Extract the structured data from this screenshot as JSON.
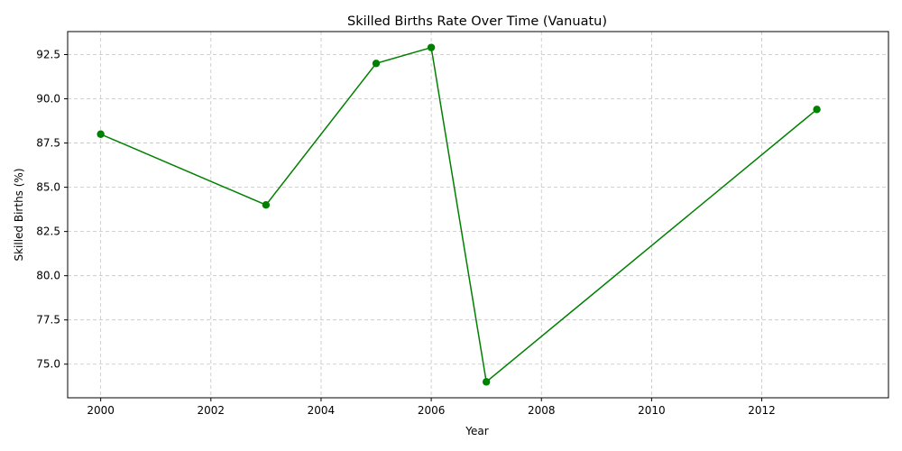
{
  "chart_data": {
    "type": "line",
    "title": "Skilled Births Rate Over Time (Vanuatu)",
    "xlabel": "Year",
    "ylabel": "Skilled Births (%)",
    "xlim": [
      1999.4,
      2014.3
    ],
    "ylim": [
      73.1,
      93.8
    ],
    "x_ticks": [
      2000,
      2002,
      2004,
      2006,
      2008,
      2010,
      2012
    ],
    "y_ticks": [
      75.0,
      77.5,
      80.0,
      82.5,
      85.0,
      87.5,
      90.0,
      92.5
    ],
    "x_tick_labels": [
      "2000",
      "2002",
      "2004",
      "2006",
      "2008",
      "2010",
      "2012"
    ],
    "y_tick_labels": [
      "75.0",
      "77.5",
      "80.0",
      "82.5",
      "85.0",
      "87.5",
      "90.0",
      "92.5"
    ],
    "grid": true,
    "series": [
      {
        "color": "#008000",
        "marker": "circle",
        "x": [
          2000,
          2003,
          2005,
          2006,
          2007,
          2013
        ],
        "y": [
          88.0,
          84.0,
          92.0,
          92.9,
          74.0,
          89.4
        ]
      }
    ]
  }
}
